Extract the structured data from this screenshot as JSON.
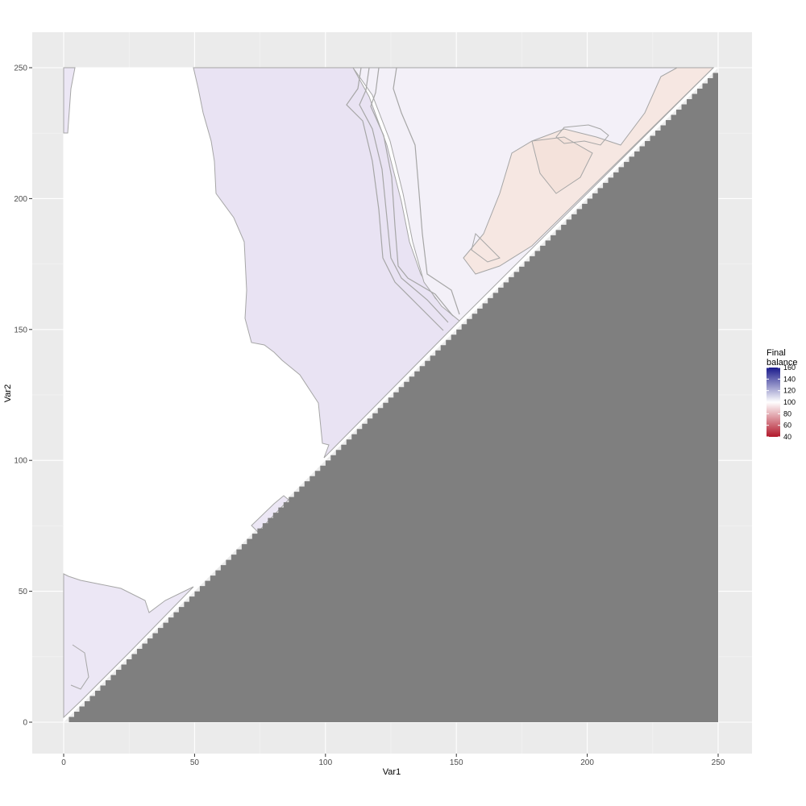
{
  "chart_data": {
    "type": "heatmap",
    "xlabel": "Var1",
    "ylabel": "Var2",
    "xlim": [
      0,
      250
    ],
    "ylim": [
      0,
      250
    ],
    "x_ticks": [
      0,
      50,
      100,
      150,
      200,
      250
    ],
    "y_ticks": [
      0,
      50,
      100,
      150,
      200,
      250
    ],
    "grid": true,
    "legend": {
      "title": [
        "Final",
        "balance"
      ],
      "placement": "right",
      "breaks": [
        160,
        140,
        120,
        100,
        80,
        60,
        40
      ],
      "range": [
        40,
        160
      ],
      "midpoint": 100,
      "colors": {
        "low": "#b2182b",
        "mid": "#ffffff",
        "high": "#1a1a8c"
      }
    },
    "na_region": {
      "description": "Var2 < Var1",
      "color": "#7f7f7f"
    },
    "regions": [
      {
        "name": "white-plateau-upper-left",
        "value": 100
      },
      {
        "name": "lavender-band-upper-middle",
        "value": 112
      },
      {
        "name": "pale-band-near-diagonal",
        "value": 104
      },
      {
        "name": "salmon-patch-upper-right",
        "value": 94
      },
      {
        "name": "lavender-patch-lower-left",
        "value": 110
      }
    ]
  }
}
